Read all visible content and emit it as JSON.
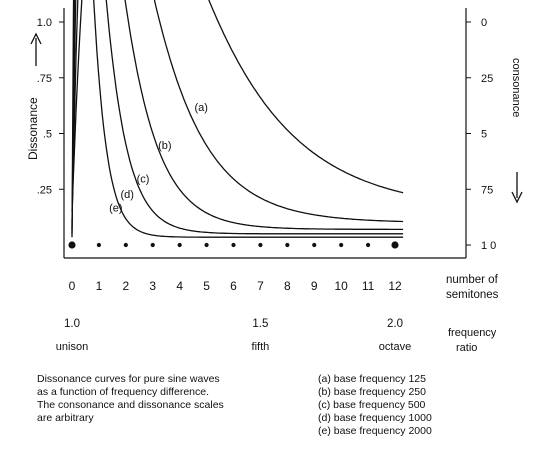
{
  "chart_data": {
    "type": "line",
    "left_axis": {
      "label": "Dissonance",
      "ticks": [
        {
          "value": 0.25,
          "label": ".25"
        },
        {
          "value": 0.5,
          "label": ".5"
        },
        {
          "value": 0.75,
          "label": ".75"
        },
        {
          "value": 1.0,
          "label": "1.0"
        }
      ]
    },
    "right_axis": {
      "label": "consonance",
      "ticks": [
        {
          "value": 0.25,
          "label": "75"
        },
        {
          "value": 0.5,
          "label": "5"
        },
        {
          "value": 0.75,
          "label": "25"
        },
        {
          "value": 1.0,
          "label": "0"
        },
        {
          "value": 0.0,
          "label": "1 0"
        }
      ]
    },
    "x_axis": {
      "label_line1": "number of",
      "label_line2": "semitones",
      "ticks": [
        "0",
        "1",
        "2",
        "3",
        "4",
        "5",
        "6",
        "7",
        "8",
        "9",
        "10",
        "11",
        "12"
      ],
      "xlim": [
        0,
        12.3
      ]
    },
    "ratio_axis": {
      "label_line1": "frequency",
      "label_line2": "ratio",
      "ticks": [
        {
          "semitone": 0,
          "value": "1.0",
          "name": "unison"
        },
        {
          "semitone": 7,
          "value": "1.5",
          "name": "fifth"
        },
        {
          "semitone": 12,
          "value": "2.0",
          "name": "octave"
        }
      ]
    },
    "ylim": [
      0,
      1.05
    ],
    "series": [
      {
        "name": "(a)",
        "label_at": [
          4.55,
          0.6
        ],
        "label_text": "(a)",
        "x_peak": 3.5,
        "tail": 0.15
      },
      {
        "name": "(b)",
        "label_at": [
          3.2,
          0.43
        ],
        "label_text": "(b)",
        "x_peak": 2.1,
        "tail": 0.1
      },
      {
        "name": "(c)",
        "label_at": [
          2.4,
          0.28
        ],
        "label_text": "(c)",
        "x_peak": 1.35,
        "tail": 0.07
      },
      {
        "name": "(d)",
        "label_at": [
          1.8,
          0.21
        ],
        "label_text": "(d)",
        "x_peak": 0.87,
        "tail": 0.05
      },
      {
        "name": "(e)",
        "label_at": [
          1.38,
          0.15
        ],
        "label_text": "(e)",
        "x_peak": 0.55,
        "tail": 0.035
      }
    ],
    "points": {
      "semitones": [
        0,
        1,
        2,
        3,
        4,
        5,
        6,
        7,
        8,
        9,
        10,
        11,
        12
      ],
      "emphasized": [
        0,
        12
      ]
    }
  },
  "caption_left": [
    "Dissonance curves for pure sine waves",
    "as a function of frequency difference.",
    "The consonance and dissonance scales",
    "are arbitrary"
  ],
  "legend": [
    "(a) base frequency 125",
    "(b) base frequency 250",
    "(c) base frequency 500",
    "(d) base frequency 1000",
    "(e) base frequency 2000"
  ],
  "arrows": {
    "up": "→",
    "down": "→"
  }
}
